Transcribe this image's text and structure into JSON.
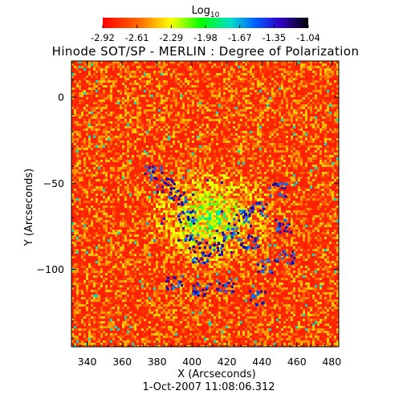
{
  "chart_data": {
    "type": "heatmap",
    "title": "Hinode SOT/SP - MERLIN : Degree of Polarization",
    "xlabel": "X (Arcseconds)",
    "ylabel": "Y (Arcseconds)",
    "xlim": [
      331,
      484
    ],
    "ylim": [
      -145,
      21
    ],
    "xticks": [
      340,
      360,
      380,
      400,
      420,
      440,
      460,
      480
    ],
    "yticks": [
      0,
      -50,
      -100
    ],
    "footer": "1-Oct-2007 11:08:06.312",
    "colorbar": {
      "label_main": "Log",
      "label_sub": "10",
      "range": [
        -2.92,
        -1.04
      ],
      "ticks": [
        "-2.92",
        "-2.61",
        "-2.29",
        "-1.98",
        "-1.67",
        "-1.35",
        "-1.04"
      ],
      "stops": [
        {
          "offset": 0.0,
          "color": "#ff0000"
        },
        {
          "offset": 0.18,
          "color": "#ff6a00"
        },
        {
          "offset": 0.33,
          "color": "#ffff00"
        },
        {
          "offset": 0.48,
          "color": "#00ff00"
        },
        {
          "offset": 0.62,
          "color": "#00e0c8"
        },
        {
          "offset": 0.74,
          "color": "#0060ff"
        },
        {
          "offset": 0.86,
          "color": "#3000c8"
        },
        {
          "offset": 1.0,
          "color": "#000000"
        }
      ]
    }
  }
}
